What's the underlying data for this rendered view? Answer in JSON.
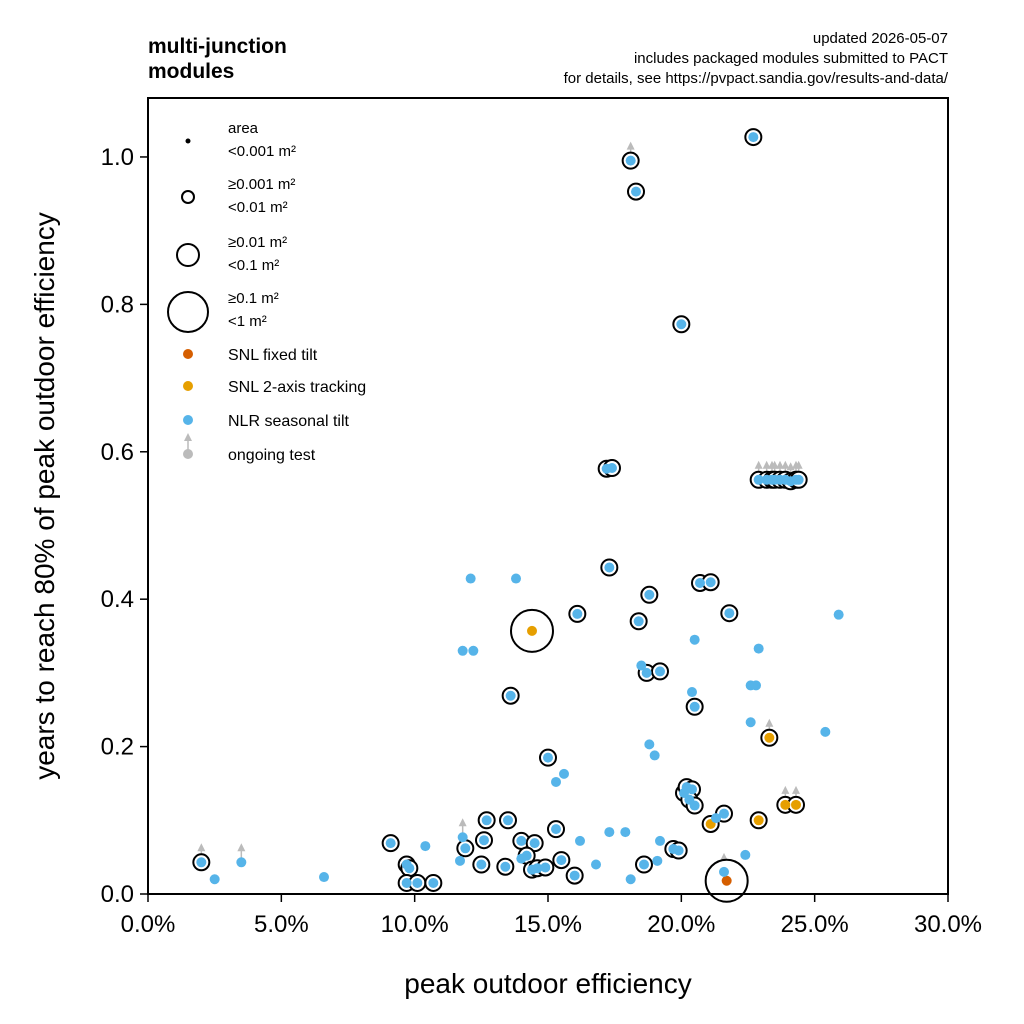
{
  "header": {
    "title_lines": [
      "multi-junction",
      "modules"
    ],
    "info_lines": [
      "updated 2026-05-07",
      "includes packaged modules submitted to PACT",
      "for details, see https://pvpact.sandia.gov/results-and-data/"
    ]
  },
  "legend": {
    "size_title": "area",
    "size_items": [
      {
        "lines": [
          "<0.001 m²"
        ]
      },
      {
        "lines": [
          "≥0.001 m²",
          "<0.01 m²"
        ]
      },
      {
        "lines": [
          "≥0.01 m²",
          "<0.1 m²"
        ]
      },
      {
        "lines": [
          "≥0.1 m²",
          "<1 m²"
        ]
      }
    ],
    "series_items": [
      {
        "label": "SNL fixed tilt",
        "color": "#d55e00"
      },
      {
        "label": "SNL 2-axis tracking",
        "color": "#e69f00"
      },
      {
        "label": "NLR seasonal tilt",
        "color": "#56b4e9"
      },
      {
        "label": "ongoing test",
        "color": "#bbbbbb"
      }
    ]
  },
  "chart_data": {
    "type": "scatter",
    "xlabel": "peak outdoor efficiency",
    "ylabel": "years to reach 80% of peak outdoor efficiency",
    "xlim": [
      0.0,
      0.3
    ],
    "ylim": [
      0.0,
      1.08
    ],
    "xticks": [
      0.0,
      0.05,
      0.1,
      0.15,
      0.2,
      0.25,
      0.3
    ],
    "xtick_labels": [
      "0.0%",
      "5.0%",
      "10.0%",
      "15.0%",
      "20.0%",
      "25.0%",
      "30.0%"
    ],
    "yticks": [
      0.0,
      0.2,
      0.4,
      0.6,
      0.8,
      1.0
    ],
    "ytick_labels": [
      "0.0",
      "0.2",
      "0.4",
      "0.6",
      "0.8",
      "1.0"
    ],
    "legend_placement": "upper-left",
    "grid": false,
    "size_classes": [
      "<0.001 m²",
      "≥0.001 m² <0.01 m²",
      "≥0.01 m² <0.1 m²",
      "≥0.1 m² <1 m²"
    ],
    "series": [
      {
        "name": "SNL fixed tilt",
        "color": "#d55e00",
        "points": [
          {
            "x": 0.217,
            "y": 0.018,
            "size": 3,
            "ongoing": true
          }
        ]
      },
      {
        "name": "SNL 2-axis tracking",
        "color": "#e69f00",
        "points": [
          {
            "x": 0.144,
            "y": 0.357,
            "size": 3
          },
          {
            "x": 0.233,
            "y": 0.212,
            "size": 1,
            "ongoing": true
          },
          {
            "x": 0.239,
            "y": 0.121,
            "size": 1,
            "ongoing": true
          },
          {
            "x": 0.243,
            "y": 0.121,
            "size": 1,
            "ongoing": true
          },
          {
            "x": 0.211,
            "y": 0.095,
            "size": 1
          },
          {
            "x": 0.229,
            "y": 0.1,
            "size": 1
          }
        ]
      },
      {
        "name": "NLR seasonal tilt",
        "color": "#56b4e9",
        "points": [
          {
            "x": 0.227,
            "y": 1.027,
            "size": 1
          },
          {
            "x": 0.181,
            "y": 0.995,
            "size": 1,
            "ongoing": true
          },
          {
            "x": 0.183,
            "y": 0.953,
            "size": 1
          },
          {
            "x": 0.2,
            "y": 0.773,
            "size": 1
          },
          {
            "x": 0.172,
            "y": 0.577,
            "size": 1
          },
          {
            "x": 0.174,
            "y": 0.578,
            "size": 1
          },
          {
            "x": 0.229,
            "y": 0.562,
            "size": 1,
            "ongoing": true
          },
          {
            "x": 0.232,
            "y": 0.562,
            "size": 1,
            "ongoing": true
          },
          {
            "x": 0.234,
            "y": 0.562,
            "size": 1,
            "ongoing": true
          },
          {
            "x": 0.235,
            "y": 0.562,
            "size": 1,
            "ongoing": true
          },
          {
            "x": 0.237,
            "y": 0.562,
            "size": 1,
            "ongoing": true
          },
          {
            "x": 0.239,
            "y": 0.562,
            "size": 1,
            "ongoing": true
          },
          {
            "x": 0.241,
            "y": 0.56,
            "size": 1,
            "ongoing": true
          },
          {
            "x": 0.243,
            "y": 0.562,
            "size": 1,
            "ongoing": true
          },
          {
            "x": 0.244,
            "y": 0.562,
            "size": 1,
            "ongoing": true
          },
          {
            "x": 0.173,
            "y": 0.443,
            "size": 1
          },
          {
            "x": 0.121,
            "y": 0.428,
            "size": 0
          },
          {
            "x": 0.138,
            "y": 0.428,
            "size": 0
          },
          {
            "x": 0.207,
            "y": 0.422,
            "size": 1
          },
          {
            "x": 0.211,
            "y": 0.423,
            "size": 1
          },
          {
            "x": 0.188,
            "y": 0.406,
            "size": 1
          },
          {
            "x": 0.161,
            "y": 0.38,
            "size": 1
          },
          {
            "x": 0.218,
            "y": 0.381,
            "size": 1
          },
          {
            "x": 0.259,
            "y": 0.379,
            "size": 0
          },
          {
            "x": 0.184,
            "y": 0.37,
            "size": 1
          },
          {
            "x": 0.205,
            "y": 0.345,
            "size": 0
          },
          {
            "x": 0.118,
            "y": 0.33,
            "size": 0
          },
          {
            "x": 0.122,
            "y": 0.33,
            "size": 0
          },
          {
            "x": 0.229,
            "y": 0.333,
            "size": 0
          },
          {
            "x": 0.185,
            "y": 0.31,
            "size": 0
          },
          {
            "x": 0.187,
            "y": 0.3,
            "size": 1
          },
          {
            "x": 0.192,
            "y": 0.302,
            "size": 1
          },
          {
            "x": 0.226,
            "y": 0.283,
            "size": 0
          },
          {
            "x": 0.228,
            "y": 0.283,
            "size": 0
          },
          {
            "x": 0.204,
            "y": 0.274,
            "size": 0
          },
          {
            "x": 0.136,
            "y": 0.269,
            "size": 1
          },
          {
            "x": 0.205,
            "y": 0.254,
            "size": 1
          },
          {
            "x": 0.226,
            "y": 0.233,
            "size": 0
          },
          {
            "x": 0.254,
            "y": 0.22,
            "size": 0
          },
          {
            "x": 0.188,
            "y": 0.203,
            "size": 0
          },
          {
            "x": 0.19,
            "y": 0.188,
            "size": 0
          },
          {
            "x": 0.15,
            "y": 0.185,
            "size": 1
          },
          {
            "x": 0.156,
            "y": 0.163,
            "size": 0
          },
          {
            "x": 0.153,
            "y": 0.152,
            "size": 0
          },
          {
            "x": 0.201,
            "y": 0.137,
            "size": 1
          },
          {
            "x": 0.202,
            "y": 0.145,
            "size": 1
          },
          {
            "x": 0.204,
            "y": 0.142,
            "size": 1
          },
          {
            "x": 0.203,
            "y": 0.128,
            "size": 1
          },
          {
            "x": 0.205,
            "y": 0.12,
            "size": 1
          },
          {
            "x": 0.216,
            "y": 0.109,
            "size": 1
          },
          {
            "x": 0.213,
            "y": 0.103,
            "size": 0
          },
          {
            "x": 0.127,
            "y": 0.1,
            "size": 1
          },
          {
            "x": 0.135,
            "y": 0.1,
            "size": 1
          },
          {
            "x": 0.153,
            "y": 0.088,
            "size": 1
          },
          {
            "x": 0.173,
            "y": 0.084,
            "size": 0
          },
          {
            "x": 0.179,
            "y": 0.084,
            "size": 0
          },
          {
            "x": 0.118,
            "y": 0.077,
            "size": 0,
            "ongoing": true
          },
          {
            "x": 0.126,
            "y": 0.073,
            "size": 1
          },
          {
            "x": 0.14,
            "y": 0.072,
            "size": 1
          },
          {
            "x": 0.145,
            "y": 0.069,
            "size": 1
          },
          {
            "x": 0.162,
            "y": 0.072,
            "size": 0
          },
          {
            "x": 0.091,
            "y": 0.069,
            "size": 1
          },
          {
            "x": 0.104,
            "y": 0.065,
            "size": 0
          },
          {
            "x": 0.119,
            "y": 0.062,
            "size": 1
          },
          {
            "x": 0.197,
            "y": 0.061,
            "size": 1
          },
          {
            "x": 0.199,
            "y": 0.059,
            "size": 1
          },
          {
            "x": 0.192,
            "y": 0.072,
            "size": 0
          },
          {
            "x": 0.224,
            "y": 0.053,
            "size": 0
          },
          {
            "x": 0.142,
            "y": 0.052,
            "size": 1
          },
          {
            "x": 0.155,
            "y": 0.046,
            "size": 1
          },
          {
            "x": 0.14,
            "y": 0.048,
            "size": 0
          },
          {
            "x": 0.117,
            "y": 0.045,
            "size": 0
          },
          {
            "x": 0.02,
            "y": 0.043,
            "size": 1,
            "ongoing": true
          },
          {
            "x": 0.035,
            "y": 0.043,
            "size": 0,
            "ongoing": true
          },
          {
            "x": 0.097,
            "y": 0.04,
            "size": 1
          },
          {
            "x": 0.098,
            "y": 0.035,
            "size": 1
          },
          {
            "x": 0.125,
            "y": 0.04,
            "size": 1
          },
          {
            "x": 0.134,
            "y": 0.037,
            "size": 1
          },
          {
            "x": 0.144,
            "y": 0.033,
            "size": 1
          },
          {
            "x": 0.146,
            "y": 0.035,
            "size": 1
          },
          {
            "x": 0.149,
            "y": 0.036,
            "size": 1
          },
          {
            "x": 0.186,
            "y": 0.04,
            "size": 1
          },
          {
            "x": 0.168,
            "y": 0.04,
            "size": 0
          },
          {
            "x": 0.191,
            "y": 0.045,
            "size": 0
          },
          {
            "x": 0.216,
            "y": 0.03,
            "size": 0,
            "ongoing": true
          },
          {
            "x": 0.16,
            "y": 0.025,
            "size": 1
          },
          {
            "x": 0.066,
            "y": 0.023,
            "size": 0
          },
          {
            "x": 0.025,
            "y": 0.02,
            "size": 0
          },
          {
            "x": 0.181,
            "y": 0.02,
            "size": 0
          },
          {
            "x": 0.097,
            "y": 0.015,
            "size": 1
          },
          {
            "x": 0.101,
            "y": 0.015,
            "size": 1
          },
          {
            "x": 0.107,
            "y": 0.015,
            "size": 1
          }
        ]
      }
    ]
  }
}
